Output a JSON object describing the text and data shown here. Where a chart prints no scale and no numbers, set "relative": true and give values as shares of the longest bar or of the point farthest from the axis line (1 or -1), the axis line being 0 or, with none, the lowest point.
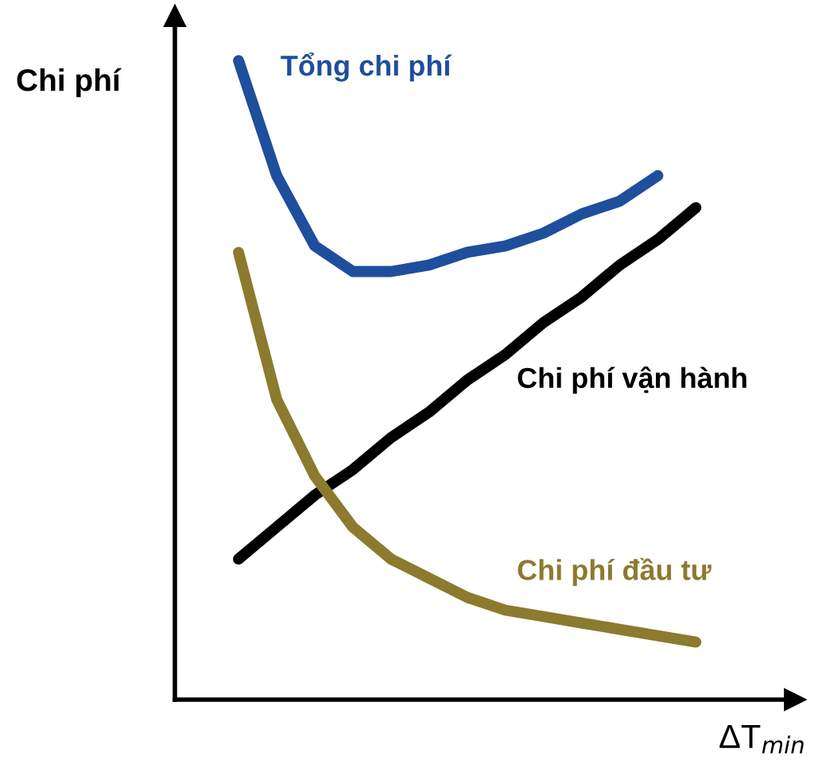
{
  "chart_data": {
    "type": "line",
    "relative": true,
    "ylabel": "Chi phí",
    "xlabel": "ΔT$_{min}$",
    "categories": [
      null,
      null,
      null,
      null,
      null,
      null,
      null,
      null,
      null,
      null,
      null,
      null,
      null
    ],
    "series": [
      {
        "name": "Tổng chi phí",
        "color": "#1f4e9c",
        "values": [
          1,
          0.82,
          0.71,
          0.67,
          0.67,
          0.68,
          0.7,
          0.71,
          0.73,
          0.76,
          0.78,
          0.82,
          null
        ]
      },
      {
        "name": "Chi phí vận hành",
        "color": "#000000",
        "values": [
          0.22,
          0.27,
          0.32,
          0.36,
          0.41,
          0.45,
          0.5,
          0.54,
          0.59,
          0.63,
          0.68,
          0.72,
          0.77
        ]
      },
      {
        "name": "Chi phí đầu tư",
        "color": "#8c7a2e",
        "values": [
          0.7,
          0.47,
          0.35,
          0.27,
          0.22,
          0.19,
          0.16,
          0.14,
          0.13,
          0.12,
          0.11,
          0.1,
          0.09
        ]
      }
    ],
    "marker": "none",
    "line_style": "solid"
  }
}
